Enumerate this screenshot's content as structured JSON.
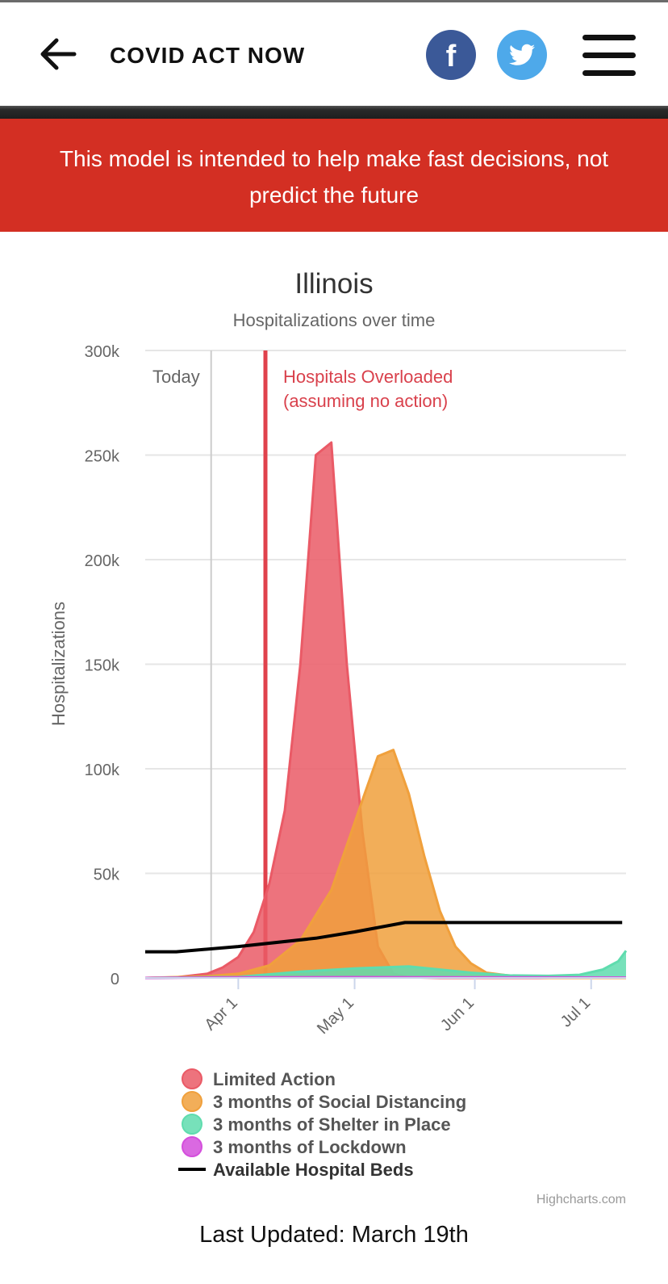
{
  "header": {
    "title": "COVID ACT NOW",
    "back_icon": "arrow-left-icon",
    "facebook_label": "f",
    "facebook_color": "#3b5998",
    "twitter_color": "#4ea9ea"
  },
  "banner": {
    "text": "This model is intended to help make fast decisions, not predict the future",
    "color": "#d32f23"
  },
  "chart_data": {
    "type": "area",
    "title": "Illinois",
    "subtitle": "Hospitalizations over time",
    "ylabel": "Hospitalizations",
    "xlabel": "",
    "ylim": [
      0,
      300000
    ],
    "yticks": [
      {
        "value": 0,
        "label": "0"
      },
      {
        "value": 50000,
        "label": "50k"
      },
      {
        "value": 100000,
        "label": "100k"
      },
      {
        "value": 150000,
        "label": "150k"
      },
      {
        "value": 200000,
        "label": "200k"
      },
      {
        "value": 250000,
        "label": "250k"
      },
      {
        "value": 300000,
        "label": "300k"
      }
    ],
    "xlim": [
      -24,
      100
    ],
    "x_unit": "days since Apr 1",
    "xticks": [
      {
        "value": 0,
        "label": "Apr 1"
      },
      {
        "value": 30,
        "label": "May 1"
      },
      {
        "value": 61,
        "label": "Jun 1"
      },
      {
        "value": 91,
        "label": "Jul 1"
      }
    ],
    "plotlines": [
      {
        "name": "today-line",
        "x": -7,
        "label": "Today",
        "color": "#cccccc"
      },
      {
        "name": "overload-line",
        "x": 7,
        "label_lines": [
          "Hospitals Overloaded",
          "(assuming no action)"
        ],
        "color": "#e0424c"
      }
    ],
    "series": [
      {
        "name": "Limited Action",
        "type": "area",
        "color": "#ea5a66",
        "points": [
          [
            -24,
            0
          ],
          [
            -16,
            300
          ],
          [
            -8,
            2000
          ],
          [
            -4,
            5000
          ],
          [
            0,
            10000
          ],
          [
            4,
            22000
          ],
          [
            8,
            45000
          ],
          [
            12,
            80000
          ],
          [
            16,
            150000
          ],
          [
            20,
            250000
          ],
          [
            24,
            256000
          ],
          [
            28,
            150000
          ],
          [
            32,
            70000
          ],
          [
            36,
            15000
          ],
          [
            40,
            2000
          ],
          [
            44,
            300
          ],
          [
            52,
            0
          ],
          [
            100,
            0
          ]
        ]
      },
      {
        "name": "3 months of Social Distancing",
        "type": "area",
        "color": "#f0a03c",
        "points": [
          [
            -24,
            0
          ],
          [
            -8,
            800
          ],
          [
            0,
            2000
          ],
          [
            8,
            6000
          ],
          [
            16,
            18000
          ],
          [
            24,
            42000
          ],
          [
            32,
            85000
          ],
          [
            36,
            106000
          ],
          [
            40,
            109000
          ],
          [
            44,
            88000
          ],
          [
            48,
            58000
          ],
          [
            52,
            32000
          ],
          [
            56,
            15000
          ],
          [
            60,
            7000
          ],
          [
            64,
            2500
          ],
          [
            72,
            600
          ],
          [
            80,
            0
          ],
          [
            100,
            0
          ]
        ]
      },
      {
        "name": "3 months of Shelter in Place",
        "type": "area",
        "color": "#5fdcae",
        "points": [
          [
            -24,
            0
          ],
          [
            0,
            500
          ],
          [
            16,
            3000
          ],
          [
            30,
            4500
          ],
          [
            44,
            5500
          ],
          [
            52,
            4000
          ],
          [
            60,
            2500
          ],
          [
            70,
            1200
          ],
          [
            80,
            1000
          ],
          [
            88,
            1500
          ],
          [
            94,
            4000
          ],
          [
            98,
            8000
          ],
          [
            100,
            13000
          ]
        ]
      },
      {
        "name": "3 months of Lockdown",
        "type": "area",
        "color": "#d44fdc",
        "points": [
          [
            -24,
            0
          ],
          [
            0,
            300
          ],
          [
            30,
            400
          ],
          [
            60,
            300
          ],
          [
            100,
            200
          ]
        ]
      },
      {
        "name": "Available Hospital Beds",
        "type": "line",
        "color": "#000000",
        "points": [
          [
            -24,
            12500
          ],
          [
            -16,
            12500
          ],
          [
            0,
            15000
          ],
          [
            20,
            19000
          ],
          [
            30,
            22000
          ],
          [
            43,
            26500
          ],
          [
            99,
            26500
          ]
        ]
      }
    ],
    "legend": [
      {
        "label": "Limited Action",
        "color": "#ea5a66",
        "symbol": "circle"
      },
      {
        "label": "3 months of Social Distancing",
        "color": "#f0a03c",
        "symbol": "circle"
      },
      {
        "label": "3 months of Shelter in Place",
        "color": "#5fdcae",
        "symbol": "circle"
      },
      {
        "label": "3 months of Lockdown",
        "color": "#d44fdc",
        "symbol": "circle"
      },
      {
        "label": "Available Hospital Beds",
        "color": "#000000",
        "symbol": "line"
      }
    ],
    "credits": "Highcharts.com"
  },
  "footer": {
    "last_updated": "Last Updated: March 19th"
  }
}
